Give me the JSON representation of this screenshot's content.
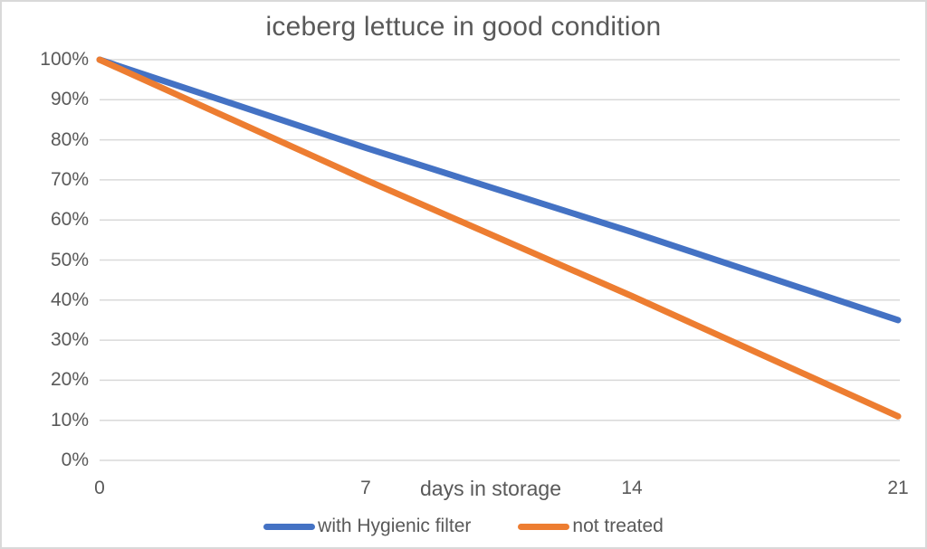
{
  "frame": {
    "background": "#FFFFFF",
    "border_color": "#D9D9D9"
  },
  "chart_data": {
    "type": "line",
    "title": "iceberg lettuce in good condition",
    "xlabel": "days in storage",
    "ylabel": "",
    "xlim": [
      0,
      21
    ],
    "ylim": [
      0,
      100
    ],
    "grid": true,
    "legend_position": "bottom",
    "grid_color": "#D9D9D9",
    "text_color": "#595959",
    "x": [
      0,
      7,
      14,
      21
    ],
    "x_ticks": [
      {
        "label": "0",
        "value": 0
      },
      {
        "label": "7",
        "value": 7
      },
      {
        "label": "14",
        "value": 14
      },
      {
        "label": "21",
        "value": 21
      }
    ],
    "y_ticks": [
      {
        "label": "0%",
        "value": 0
      },
      {
        "label": "10%",
        "value": 10
      },
      {
        "label": "20%",
        "value": 20
      },
      {
        "label": "30%",
        "value": 30
      },
      {
        "label": "40%",
        "value": 40
      },
      {
        "label": "50%",
        "value": 50
      },
      {
        "label": "60%",
        "value": 60
      },
      {
        "label": "70%",
        "value": 70
      },
      {
        "label": "80%",
        "value": 80
      },
      {
        "label": "90%",
        "value": 90
      },
      {
        "label": "100%",
        "value": 100
      }
    ],
    "series": [
      {
        "name": "with Hygienic filter",
        "color": "#4472C4",
        "values": [
          100,
          78,
          57,
          35
        ]
      },
      {
        "name": "not treated",
        "color": "#ED7D31",
        "values": [
          100,
          70,
          41,
          11
        ]
      }
    ]
  }
}
